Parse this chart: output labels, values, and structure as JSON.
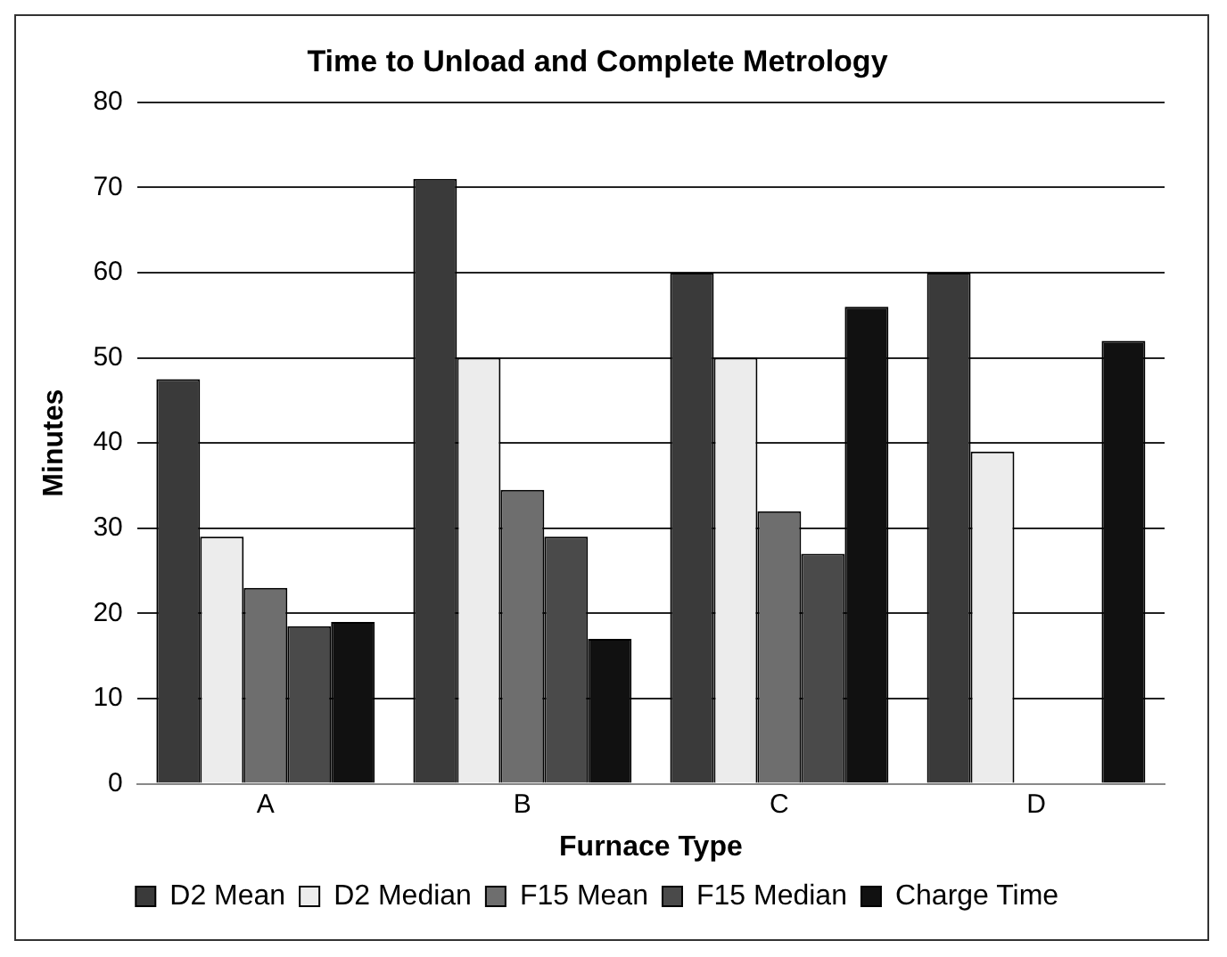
{
  "chart_data": {
    "type": "bar",
    "title": "Time to Unload and Complete Metrology",
    "xlabel": "Furnace Type",
    "ylabel": "Minutes",
    "categories": [
      "A",
      "B",
      "C",
      "D"
    ],
    "series": [
      {
        "name": "D2 Mean",
        "color": "#3a3a3a",
        "values": [
          47.5,
          71,
          60,
          60
        ]
      },
      {
        "name": "D2 Median",
        "color": "#ececec",
        "values": [
          29,
          50,
          50,
          39
        ]
      },
      {
        "name": "F15 Mean",
        "color": "#6e6e6e",
        "values": [
          23,
          34.5,
          32,
          null
        ]
      },
      {
        "name": "F15 Median",
        "color": "#4a4a4a",
        "values": [
          18.5,
          29,
          27,
          null
        ]
      },
      {
        "name": "Charge Time",
        "color": "#111111",
        "values": [
          19,
          17,
          56,
          52
        ]
      }
    ],
    "ylim": [
      0,
      80
    ],
    "yticks": [
      0,
      10,
      20,
      30,
      40,
      50,
      60,
      70,
      80
    ],
    "grid": "y",
    "legend": "bottom"
  }
}
